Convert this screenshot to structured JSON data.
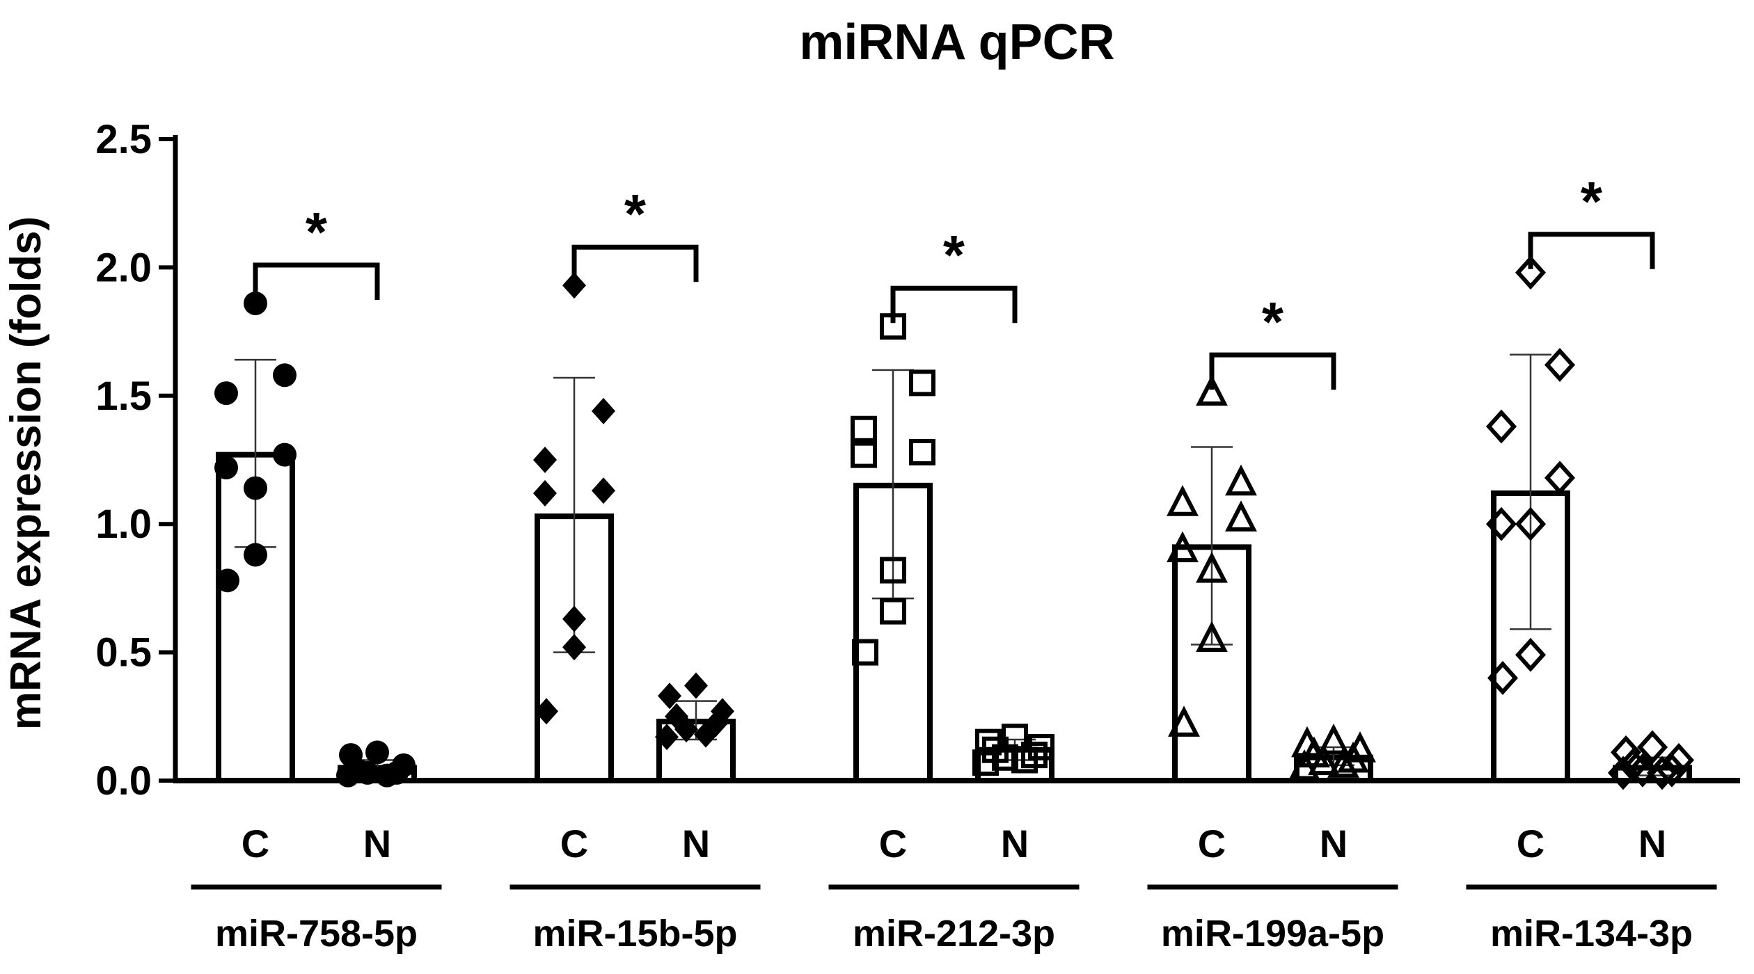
{
  "chart_data": {
    "type": "bar",
    "title": "miRNA qPCR",
    "ylabel": "mRNA expression (folds)",
    "xlabel": "",
    "ylim": [
      0,
      2.5
    ],
    "yticks": [
      "0.0",
      "0.5",
      "1.0",
      "1.5",
      "2.0",
      "2.5"
    ],
    "grid": false,
    "group_labels": [
      "C",
      "N"
    ],
    "significance_label": "*",
    "colors": {
      "bar_fill": "#ffffff",
      "stroke": "#000000"
    },
    "categories": [
      {
        "name": "miR-758-5p",
        "marker": "filled-circle",
        "C": {
          "mean": 1.27,
          "sd_low": 0.91,
          "sd_high": 1.64,
          "points": [
            1.86,
            1.58,
            1.51,
            1.27,
            1.22,
            1.14,
            0.88,
            0.78
          ]
        },
        "N": {
          "mean": 0.05,
          "sd_low": 0.02,
          "sd_high": 0.08,
          "points": [
            0.11,
            0.1,
            0.06,
            0.04,
            0.03,
            0.03,
            0.02,
            0.02
          ]
        },
        "significant": true
      },
      {
        "name": "miR-15b-5p",
        "marker": "filled-diamond",
        "C": {
          "mean": 1.03,
          "sd_low": 0.5,
          "sd_high": 1.57,
          "points": [
            1.93,
            1.44,
            1.25,
            1.13,
            1.12,
            0.63,
            0.52,
            0.27
          ]
        },
        "N": {
          "mean": 0.23,
          "sd_low": 0.16,
          "sd_high": 0.31,
          "points": [
            0.37,
            0.33,
            0.27,
            0.25,
            0.22,
            0.2,
            0.18,
            0.17
          ]
        },
        "significant": true
      },
      {
        "name": "miR-212-3p",
        "marker": "open-square",
        "C": {
          "mean": 1.15,
          "sd_low": 0.71,
          "sd_high": 1.6,
          "points": [
            1.77,
            1.55,
            1.37,
            1.28,
            1.27,
            0.82,
            0.66,
            0.5
          ]
        },
        "N": {
          "mean": 0.12,
          "sd_low": 0.08,
          "sd_high": 0.16,
          "points": [
            0.17,
            0.15,
            0.13,
            0.12,
            0.1,
            0.09,
            0.08,
            0.07
          ]
        },
        "significant": true
      },
      {
        "name": "miR-199a-5p",
        "marker": "open-triangle",
        "C": {
          "mean": 0.91,
          "sd_low": 0.53,
          "sd_high": 1.3,
          "points": [
            1.51,
            1.16,
            1.08,
            1.02,
            0.9,
            0.82,
            0.55,
            0.22
          ]
        },
        "N": {
          "mean": 0.09,
          "sd_low": 0.06,
          "sd_high": 0.13,
          "points": [
            0.15,
            0.14,
            0.12,
            0.1,
            0.08,
            0.07,
            0.06,
            0.05
          ]
        },
        "significant": true
      },
      {
        "name": "miR-134-3p",
        "marker": "open-diamond",
        "C": {
          "mean": 1.12,
          "sd_low": 0.59,
          "sd_high": 1.66,
          "points": [
            1.98,
            1.62,
            1.38,
            1.18,
            1.0,
            1.0,
            0.49,
            0.4
          ]
        },
        "N": {
          "mean": 0.05,
          "sd_low": 0.02,
          "sd_high": 0.09,
          "points": [
            0.13,
            0.11,
            0.08,
            0.06,
            0.04,
            0.04,
            0.03,
            0.03
          ]
        },
        "significant": true
      }
    ]
  }
}
